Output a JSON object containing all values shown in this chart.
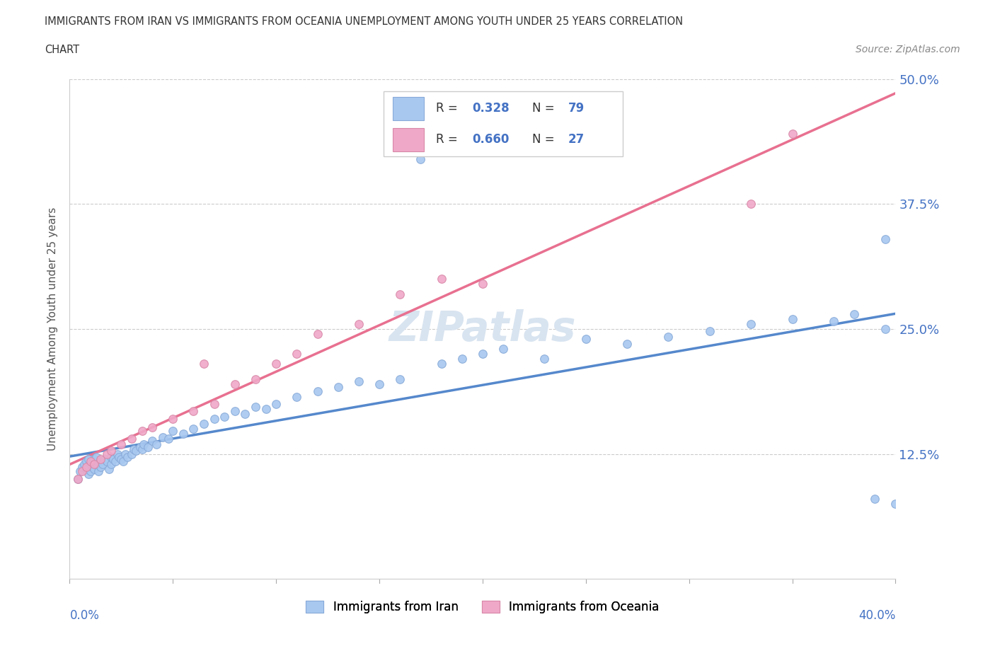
{
  "title_line1": "IMMIGRANTS FROM IRAN VS IMMIGRANTS FROM OCEANIA UNEMPLOYMENT AMONG YOUTH UNDER 25 YEARS CORRELATION",
  "title_line2": "CHART",
  "source": "Source: ZipAtlas.com",
  "ylabel": "Unemployment Among Youth under 25 years",
  "xlim": [
    0.0,
    0.4
  ],
  "ylim": [
    0.0,
    0.5
  ],
  "legend1_r": "0.328",
  "legend1_n": "79",
  "legend2_r": "0.660",
  "legend2_n": "27",
  "color_iran": "#a8c8f0",
  "color_oceania": "#f0a8c8",
  "regression_color_iran": "#5588cc",
  "regression_color_oceania": "#e87090",
  "watermark_color": "#d8e4f0",
  "iran_x": [
    0.004,
    0.005,
    0.006,
    0.007,
    0.008,
    0.008,
    0.009,
    0.009,
    0.01,
    0.01,
    0.011,
    0.011,
    0.012,
    0.012,
    0.013,
    0.013,
    0.014,
    0.015,
    0.015,
    0.016,
    0.017,
    0.018,
    0.019,
    0.02,
    0.02,
    0.021,
    0.022,
    0.023,
    0.024,
    0.025,
    0.026,
    0.027,
    0.028,
    0.03,
    0.031,
    0.032,
    0.034,
    0.035,
    0.036,
    0.038,
    0.04,
    0.042,
    0.045,
    0.048,
    0.05,
    0.055,
    0.06,
    0.065,
    0.07,
    0.075,
    0.08,
    0.085,
    0.09,
    0.095,
    0.1,
    0.11,
    0.12,
    0.13,
    0.14,
    0.15,
    0.16,
    0.17,
    0.18,
    0.19,
    0.2,
    0.21,
    0.23,
    0.25,
    0.27,
    0.29,
    0.31,
    0.33,
    0.35,
    0.37,
    0.38,
    0.39,
    0.395,
    0.395,
    0.4
  ],
  "iran_y": [
    0.1,
    0.108,
    0.112,
    0.115,
    0.11,
    0.118,
    0.105,
    0.12,
    0.108,
    0.115,
    0.112,
    0.118,
    0.11,
    0.12,
    0.115,
    0.122,
    0.108,
    0.112,
    0.118,
    0.115,
    0.12,
    0.118,
    0.11,
    0.115,
    0.122,
    0.12,
    0.118,
    0.125,
    0.122,
    0.12,
    0.118,
    0.125,
    0.122,
    0.125,
    0.13,
    0.128,
    0.132,
    0.13,
    0.135,
    0.132,
    0.138,
    0.135,
    0.142,
    0.14,
    0.148,
    0.145,
    0.15,
    0.155,
    0.16,
    0.162,
    0.168,
    0.165,
    0.172,
    0.17,
    0.175,
    0.182,
    0.188,
    0.192,
    0.198,
    0.195,
    0.2,
    0.42,
    0.215,
    0.22,
    0.225,
    0.23,
    0.22,
    0.24,
    0.235,
    0.242,
    0.248,
    0.255,
    0.26,
    0.258,
    0.265,
    0.08,
    0.34,
    0.25,
    0.075
  ],
  "oceania_x": [
    0.004,
    0.006,
    0.008,
    0.01,
    0.012,
    0.015,
    0.018,
    0.02,
    0.025,
    0.03,
    0.035,
    0.04,
    0.05,
    0.06,
    0.065,
    0.07,
    0.08,
    0.09,
    0.1,
    0.11,
    0.12,
    0.14,
    0.16,
    0.18,
    0.2,
    0.33,
    0.35
  ],
  "oceania_y": [
    0.1,
    0.108,
    0.112,
    0.118,
    0.115,
    0.12,
    0.125,
    0.128,
    0.135,
    0.14,
    0.148,
    0.152,
    0.16,
    0.168,
    0.215,
    0.175,
    0.195,
    0.2,
    0.215,
    0.225,
    0.245,
    0.255,
    0.285,
    0.3,
    0.295,
    0.375,
    0.445
  ]
}
